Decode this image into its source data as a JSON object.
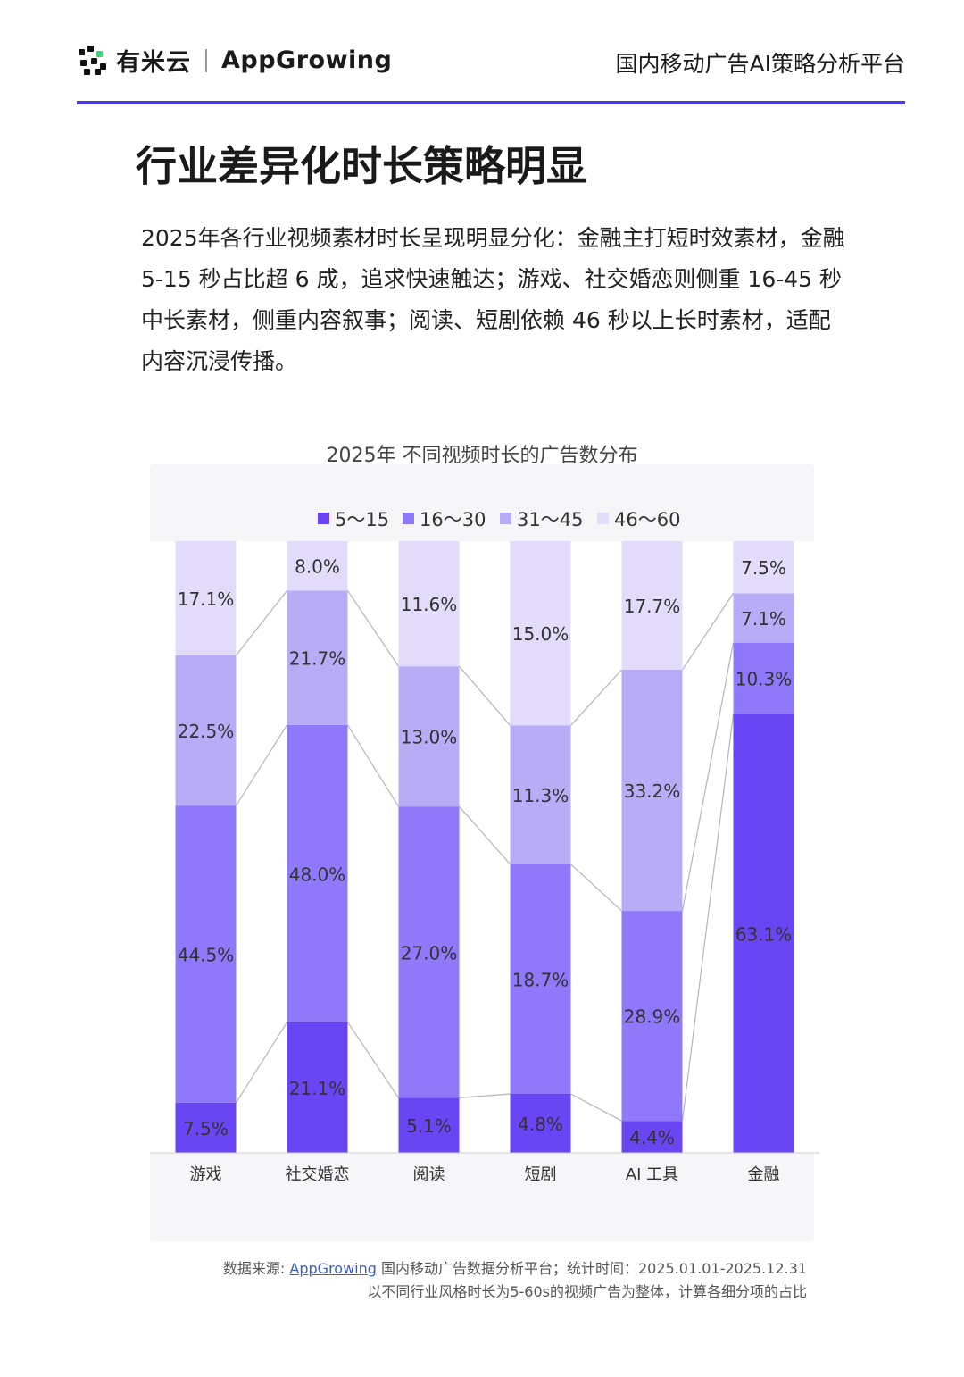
{
  "header": {
    "logo_cn": "有米云",
    "logo_en": "AppGrowing",
    "platform": "国内移动广告AI策略分析平台"
  },
  "page_title": "行业差异化时长策略明显",
  "intro": "2025年各行业视频素材时长呈现明显分化：金融主打短时效素材，金融 5-15 秒占比超 6 成，追求快速触达；游戏、社交婚恋则侧重 16-45 秒中长素材，侧重内容叙事；阅读、短剧依赖 46 秒以上长时素材，适配内容沉浸传播。",
  "chart_data": {
    "type": "bar",
    "stacked": true,
    "title": "2025年 不同视频时长的广告数分布",
    "categories": [
      "游戏",
      "社交婚恋",
      "阅读",
      "短剧",
      "AI 工具",
      "金融"
    ],
    "series": [
      {
        "name": "5～15",
        "color": "#6a45f3",
        "values": [
          7.5,
          21.1,
          5.1,
          4.8,
          4.4,
          63.1
        ],
        "labels": [
          "7.5%",
          "21.1%",
          "5.1%",
          "4.8%",
          "4.4%",
          "63.1%"
        ]
      },
      {
        "name": "16～30",
        "color": "#8f78fa",
        "values": [
          44.5,
          48.0,
          27.0,
          18.7,
          28.9,
          10.3
        ],
        "labels": [
          "44.5%",
          "48.0%",
          "27.0%",
          "18.7%",
          "28.9%",
          "10.3%"
        ]
      },
      {
        "name": "31～45",
        "color": "#b8acf6",
        "values": [
          22.5,
          21.7,
          13.0,
          11.3,
          33.2,
          7.1
        ],
        "labels": [
          "22.5%",
          "21.7%",
          "13.0%",
          "11.3%",
          "33.2%",
          "7.1%"
        ]
      },
      {
        "name": "46～60",
        "color": "#e2dcfa",
        "values": [
          17.1,
          8.0,
          11.6,
          15.0,
          17.7,
          7.5
        ],
        "labels": [
          "17.1%",
          "8.0%",
          "11.6%",
          "15.0%",
          "17.7%",
          "7.5%"
        ]
      }
    ],
    "legend_position": "top",
    "grid": false
  },
  "source": {
    "prefix": "数据来源: ",
    "link": "AppGrowing",
    "suffix": " 国内移动广告数据分析平台；统计时间：2025.01.01-2025.12.31",
    "note": "以不同行业风格时长为5-60s的视频广告为整体，计算各细分项的占比"
  }
}
